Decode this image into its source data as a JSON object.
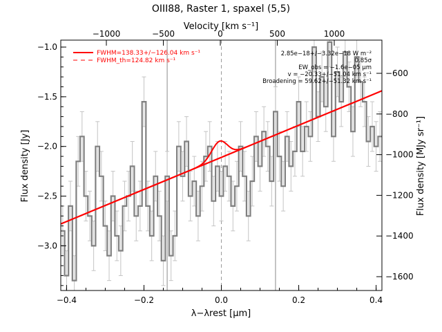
{
  "chart_data": {
    "type": "line",
    "title": "OIII88, Raster 1, spaxel (5,5)",
    "xlabel": "λ−λrest [μm]",
    "ylabel": "Flux density [Jy]",
    "top_axis_label": "Velocity [km s⁻¹]",
    "right_axis_label": "Flux density [MJy sr⁻¹]",
    "xlim": [
      -0.415,
      0.415
    ],
    "ylim": [
      -3.45,
      -0.93
    ],
    "x_ticks": [
      -0.4,
      -0.2,
      0.0,
      0.2,
      0.4
    ],
    "x_tick_labels": [
      "−0.4",
      "−0.2",
      "0.0",
      "0.2",
      "0.4"
    ],
    "y_ticks": [
      -1.0,
      -1.5,
      -2.0,
      -2.5,
      -3.0
    ],
    "y_tick_labels": [
      "−1.0",
      "−1.5",
      "−2.0",
      "−2.5",
      "−3.0"
    ],
    "top_ticks": [
      -1000,
      -500,
      0,
      500,
      1000
    ],
    "top_tick_labels": [
      "−1000",
      "−500",
      "0",
      "500",
      "1000"
    ],
    "right_ticks": [
      -600,
      -800,
      -1000,
      -1200,
      -1400,
      -1600
    ],
    "right_tick_labels": [
      "−600",
      "−800",
      "−1000",
      "−1200",
      "−1400",
      "−1600"
    ],
    "vlines_gray": [
      -0.14,
      0.14
    ],
    "vline_dashed": 0.0,
    "legend": [
      {
        "label": "FWHM=138.33+/−126.04 km s⁻¹",
        "style": "solid",
        "color": "#ff0000"
      },
      {
        "label": "FWHM_th=124.82 km s⁻¹",
        "style": "dashed",
        "color": "#ff0000"
      }
    ],
    "annotations": [
      "2.85e−18+/−3.32e−18 W m⁻²",
      "0.85σ",
      "EW_obs = −1.6e−05 μm",
      "v = −20.33+/−51.04 km s⁻¹",
      "Broadening = 59.62+/−51.32 km s⁻¹"
    ],
    "spectrum": {
      "name": "",
      "color": "#808080",
      "x": [
        -0.41,
        -0.4,
        -0.39,
        -0.38,
        -0.37,
        -0.36,
        -0.35,
        -0.34,
        -0.33,
        -0.32,
        -0.31,
        -0.3,
        -0.29,
        -0.28,
        -0.27,
        -0.26,
        -0.25,
        -0.24,
        -0.23,
        -0.22,
        -0.21,
        -0.2,
        -0.19,
        -0.18,
        -0.17,
        -0.16,
        -0.15,
        -0.14,
        -0.13,
        -0.12,
        -0.11,
        -0.1,
        -0.09,
        -0.08,
        -0.07,
        -0.06,
        -0.05,
        -0.04,
        -0.03,
        -0.02,
        -0.01,
        0.0,
        0.01,
        0.02,
        0.03,
        0.04,
        0.05,
        0.06,
        0.07,
        0.08,
        0.09,
        0.1,
        0.11,
        0.12,
        0.13,
        0.14,
        0.15,
        0.16,
        0.17,
        0.18,
        0.19,
        0.2,
        0.21,
        0.22,
        0.23,
        0.24,
        0.25,
        0.26,
        0.27,
        0.28,
        0.29,
        0.3,
        0.31,
        0.32,
        0.33,
        0.34,
        0.35,
        0.36,
        0.37,
        0.38,
        0.39,
        0.4,
        0.41
      ],
      "y": [
        -2.85,
        -3.3,
        -2.6,
        -3.35,
        -2.15,
        -1.9,
        -2.5,
        -2.7,
        -3.0,
        -2.0,
        -2.3,
        -2.8,
        -3.1,
        -2.5,
        -2.9,
        -3.05,
        -2.6,
        -2.5,
        -2.2,
        -2.7,
        -2.6,
        -1.55,
        -2.6,
        -2.9,
        -2.3,
        -2.7,
        -3.15,
        -2.3,
        -3.1,
        -2.9,
        -2.0,
        -2.3,
        -1.95,
        -2.5,
        -2.35,
        -2.7,
        -2.4,
        -2.1,
        -2.0,
        -2.55,
        -2.2,
        -2.5,
        -2.2,
        -2.3,
        -2.6,
        -2.4,
        -2.0,
        -2.3,
        -2.7,
        -2.35,
        -1.9,
        -2.2,
        -1.85,
        -2.0,
        -2.35,
        -1.65,
        -2.1,
        -2.4,
        -1.9,
        -2.2,
        -2.05,
        -1.55,
        -2.05,
        -1.8,
        -1.9,
        -1.0,
        -1.7,
        -1.3,
        -1.6,
        -0.95,
        -1.9,
        -1.25,
        -1.55,
        -1.05,
        -1.4,
        -1.85,
        -1.1,
        -1.35,
        -1.55,
        -1.95,
        -1.8,
        -2.0,
        -1.9
      ],
      "yerr": 0.25
    },
    "fit": {
      "name": "",
      "color": "#ff0000",
      "continuum_endpoints": {
        "x": [
          -0.415,
          0.415
        ],
        "y": [
          -2.78,
          -1.44
        ]
      },
      "line_center": -0.005,
      "line_sigma": 0.02,
      "line_amplitude": 0.17
    }
  }
}
